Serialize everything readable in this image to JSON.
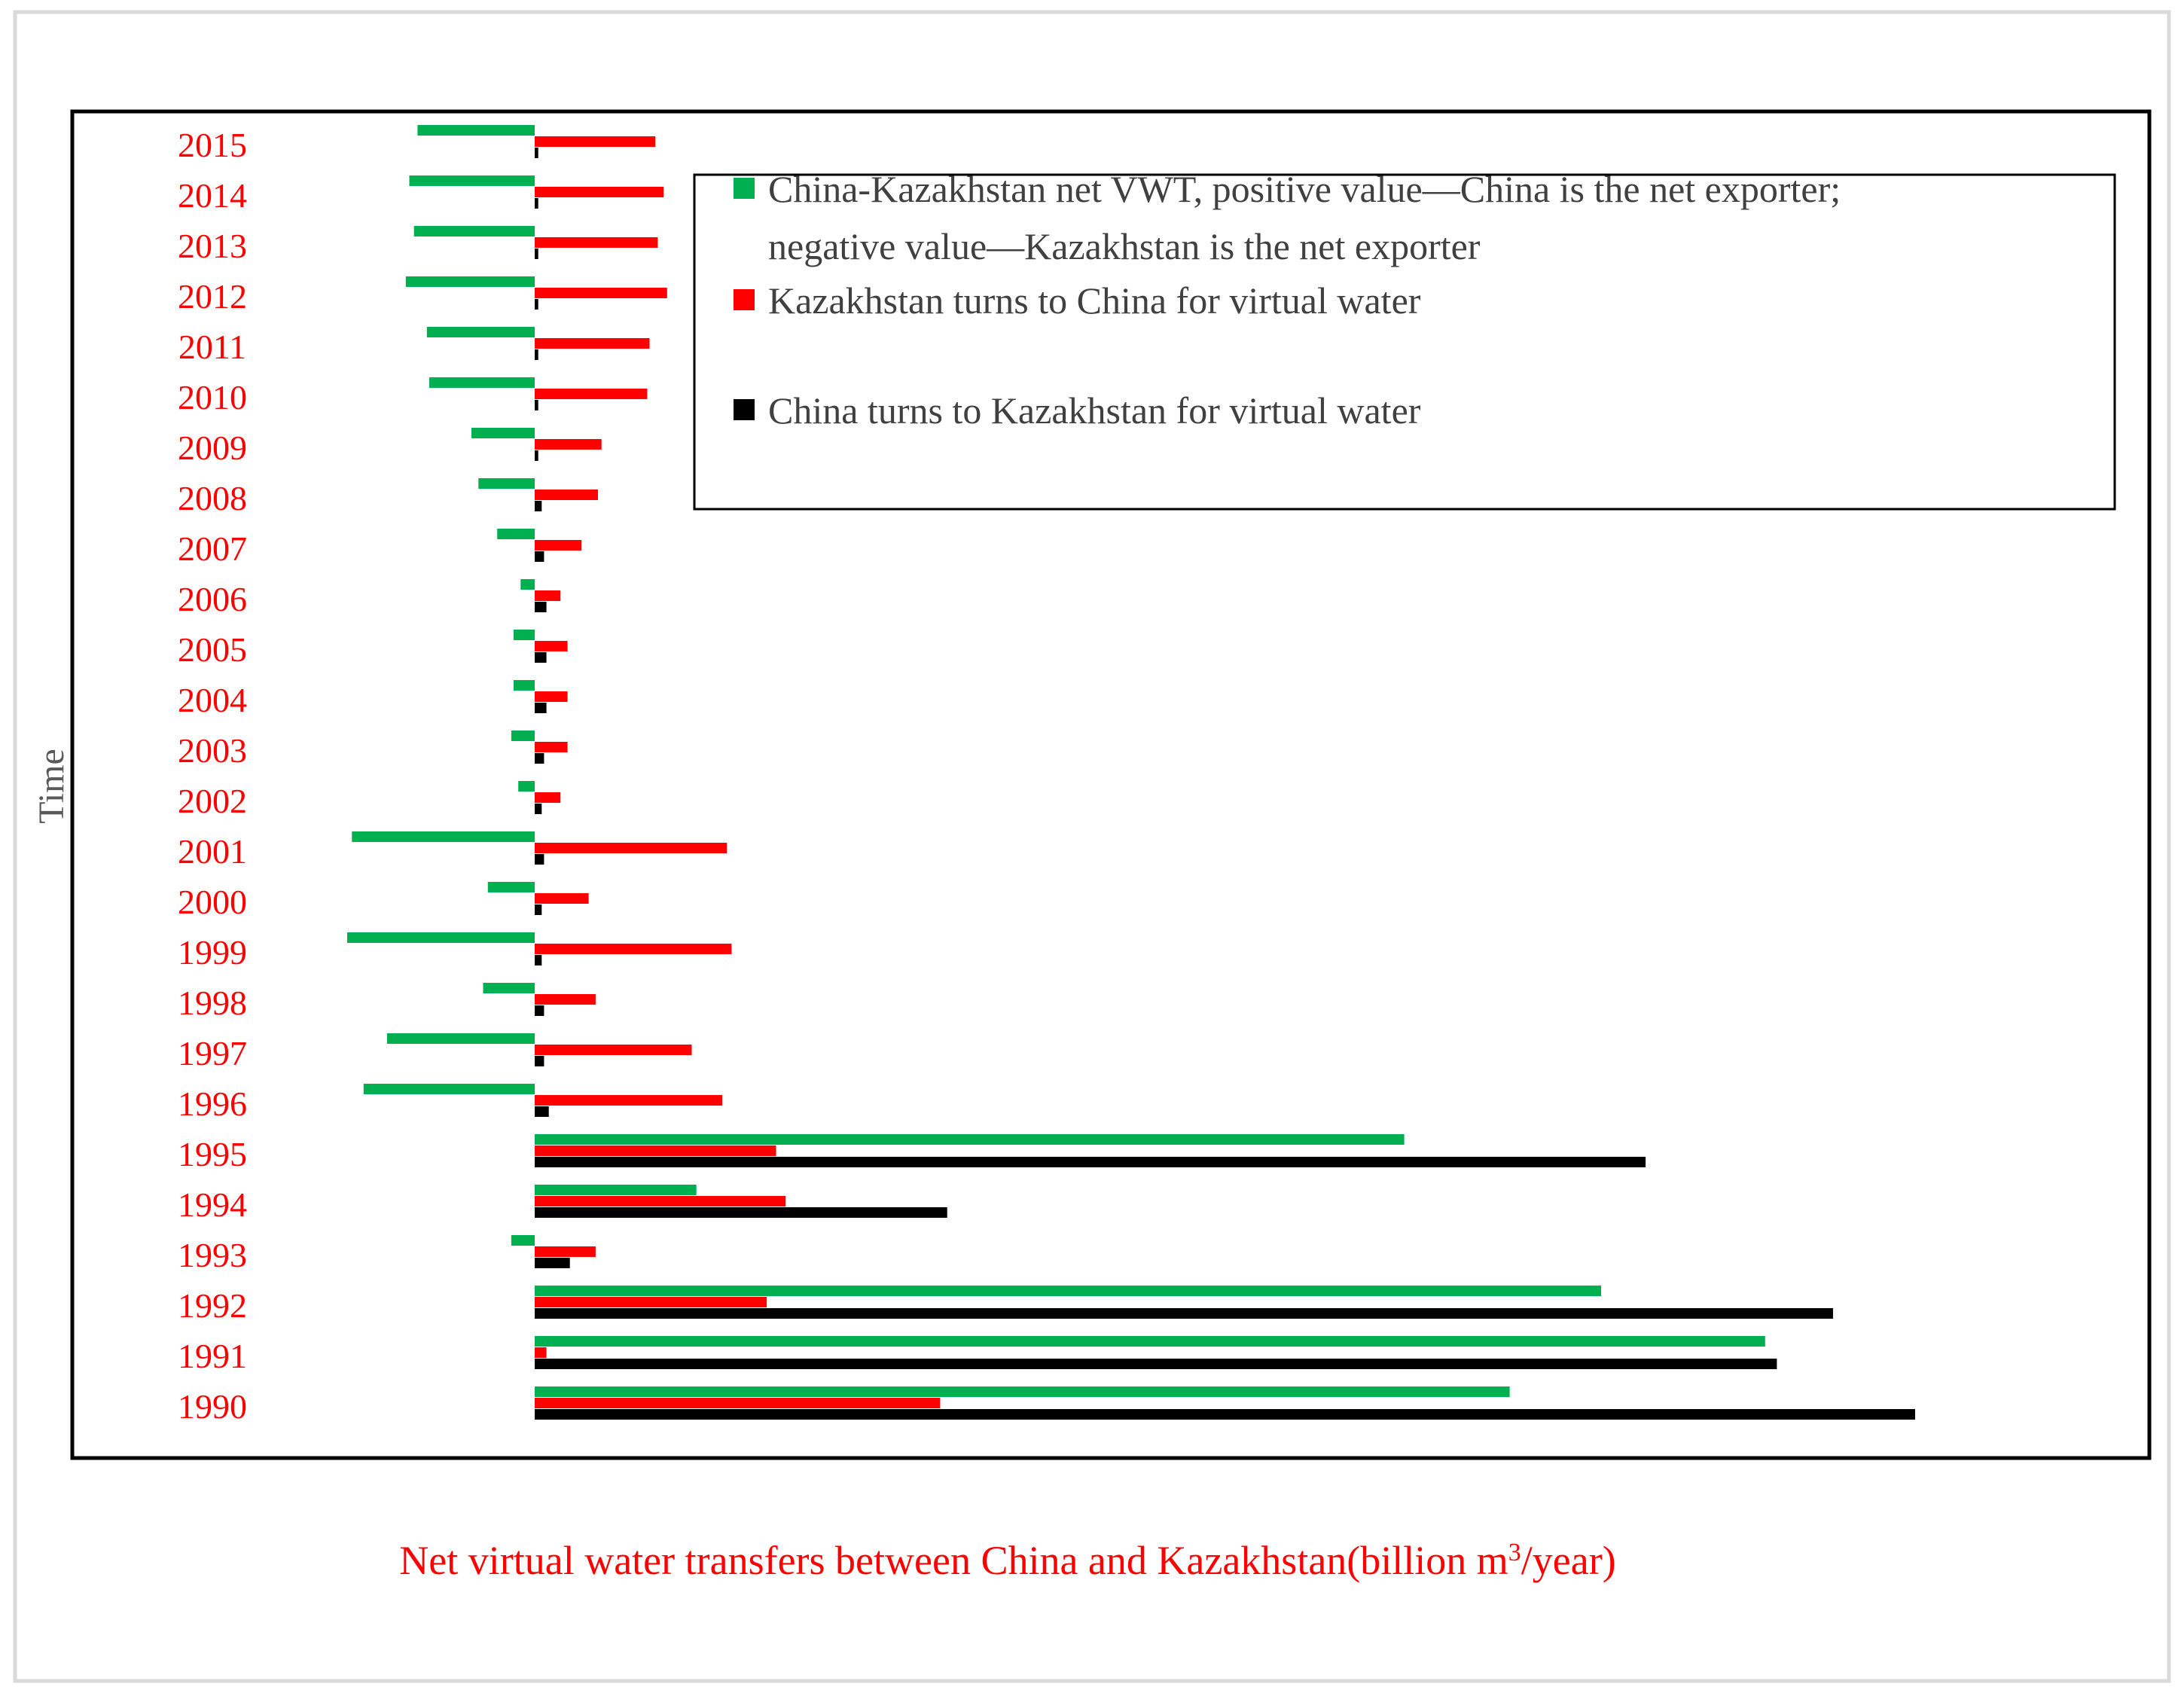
{
  "chart_data": {
    "type": "bar",
    "orientation": "horizontal",
    "categories": [
      "2015",
      "2014",
      "2013",
      "2012",
      "2011",
      "2010",
      "2009",
      "2008",
      "2007",
      "2006",
      "2005",
      "2004",
      "2003",
      "2002",
      "2001",
      "2000",
      "1999",
      "1998",
      "1997",
      "1996",
      "1995",
      "1994",
      "1993",
      "1992",
      "1991",
      "1990"
    ],
    "series": [
      {
        "name": "China-Kazakhstan net VWT, positive value—China is the net exporter; negative value—Kazakhstan is the net exporter",
        "color": "#00b050",
        "values": [
          -1.0,
          -1.07,
          -1.03,
          -1.1,
          -0.92,
          -0.9,
          -0.54,
          -0.48,
          -0.32,
          -0.12,
          -0.18,
          -0.18,
          -0.2,
          -0.14,
          -1.56,
          -0.4,
          -1.6,
          -0.44,
          -1.26,
          -1.46,
          7.42,
          1.38,
          -0.2,
          9.1,
          10.5,
          8.32
        ]
      },
      {
        "name": "Kazakhstan turns to China for virtual water",
        "color": "#ff0000",
        "values": [
          1.03,
          1.1,
          1.05,
          1.13,
          0.98,
          0.96,
          0.57,
          0.54,
          0.4,
          0.22,
          0.28,
          0.28,
          0.28,
          0.22,
          1.64,
          0.46,
          1.68,
          0.52,
          1.34,
          1.6,
          2.06,
          2.14,
          0.52,
          1.98,
          0.1,
          3.46
        ]
      },
      {
        "name": "China turns to Kazakhstan for virtual water",
        "color": "#000000",
        "values": [
          0.03,
          0.03,
          0.03,
          0.03,
          0.03,
          0.03,
          0.03,
          0.06,
          0.08,
          0.1,
          0.1,
          0.1,
          0.08,
          0.06,
          0.08,
          0.06,
          0.06,
          0.08,
          0.08,
          0.12,
          9.48,
          3.52,
          0.3,
          11.08,
          10.6,
          11.78
        ]
      }
    ],
    "ylabel": "Time",
    "xlabel": "Net virtual water transfers between China and Kazakhstan(billion m³/year)",
    "xlim": [
      -3.96,
      13.76
    ],
    "legend_position": "top-right",
    "grid": false
  },
  "colors": {
    "year_labels": "#ff0000",
    "caption": "#ff0000",
    "axis_title": "#595959",
    "legend_text": "#404040"
  }
}
